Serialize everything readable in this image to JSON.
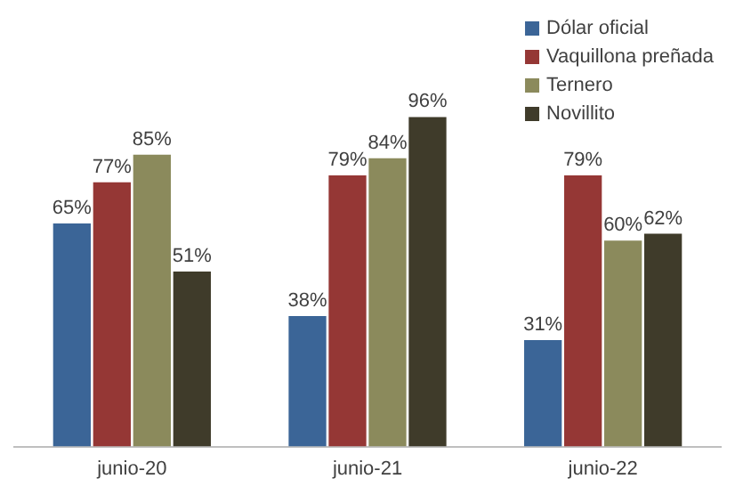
{
  "chart_data": {
    "type": "bar",
    "categories": [
      "junio-20",
      "junio-21",
      "junio-22"
    ],
    "series": [
      {
        "name": "Dólar oficial",
        "color": "#3b6597",
        "values": [
          65,
          38,
          31
        ],
        "value_labels": [
          "65%",
          "38%",
          "31%"
        ]
      },
      {
        "name": "Vaquillona preñada",
        "color": "#953735",
        "values": [
          77,
          79,
          79
        ],
        "value_labels": [
          "77%",
          "79%",
          "79%"
        ]
      },
      {
        "name": "Ternero",
        "color": "#8b8a5c",
        "values": [
          85,
          84,
          60
        ],
        "value_labels": [
          "85%",
          "84%",
          "60%"
        ]
      },
      {
        "name": "Novillito",
        "color": "#3f3b2a",
        "values": [
          51,
          96,
          62
        ],
        "value_labels": [
          "51%",
          "96%",
          "62%"
        ]
      }
    ],
    "ylim": [
      0,
      100
    ],
    "tick_labels": "x",
    "grid": false,
    "legend": "top right"
  }
}
